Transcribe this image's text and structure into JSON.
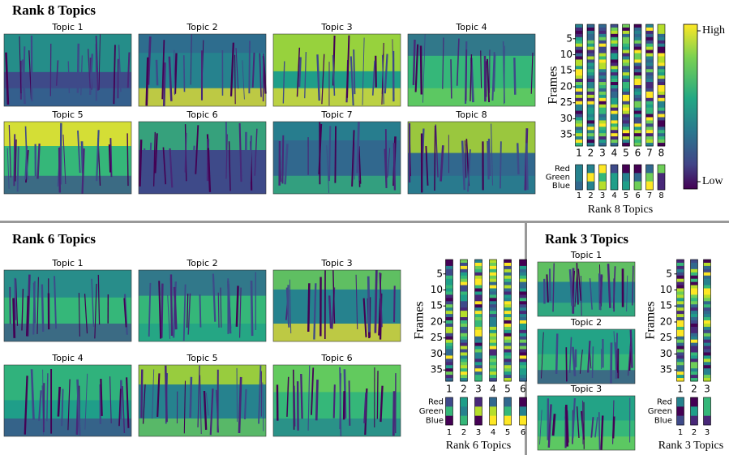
{
  "panels": [
    {
      "title": "Rank 8 Topics",
      "topics": [
        "Topic 1",
        "Topic 2",
        "Topic 3",
        "Topic 4",
        "Topic 5",
        "Topic 6",
        "Topic 7",
        "Topic 8"
      ],
      "frames_label": "Frames",
      "frame_ticks": [
        5,
        10,
        15,
        20,
        25,
        30,
        35
      ],
      "columns": [
        1,
        2,
        3,
        4,
        5,
        6,
        7,
        8
      ],
      "channels": [
        "Red",
        "Green",
        "Blue"
      ],
      "x_label": "Rank 8 Topics"
    },
    {
      "title": "Rank 6 Topics",
      "topics": [
        "Topic 1",
        "Topic 2",
        "Topic 3",
        "Topic 4",
        "Topic 5",
        "Topic 6"
      ],
      "frames_label": "Frames",
      "frame_ticks": [
        5,
        10,
        15,
        20,
        25,
        30,
        35
      ],
      "columns": [
        1,
        2,
        3,
        4,
        5,
        6
      ],
      "channels": [
        "Red",
        "Green",
        "Blue"
      ],
      "x_label": "Rank 6 Topics"
    },
    {
      "title": "Rank 3 Topics",
      "topics": [
        "Topic 1",
        "Topic 2",
        "Topic 3"
      ],
      "frames_label": "Frames",
      "frame_ticks": [
        5,
        10,
        15,
        20,
        25,
        30,
        35
      ],
      "columns": [
        1,
        2,
        3
      ],
      "channels": [
        "Red",
        "Green",
        "Blue"
      ],
      "x_label": "Rank 3 Topics"
    }
  ],
  "colorbar": {
    "high": "High",
    "low": "Low"
  }
}
